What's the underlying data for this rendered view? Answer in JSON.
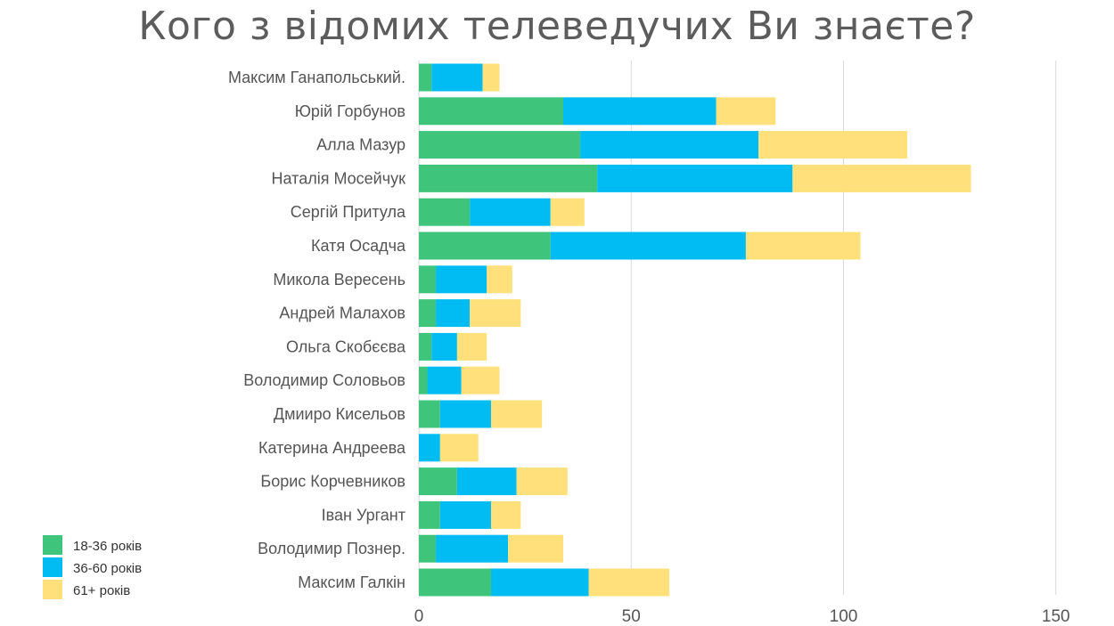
{
  "chart_data": {
    "type": "bar",
    "orientation": "horizontal",
    "stacked": true,
    "title": "Кого з відомих телеведучих Ви знаєте?",
    "categories": [
      "Максим Ганапольський.",
      "Юрій Горбунов",
      "Алла Мазур",
      "Наталія Мосейчук",
      "Сергій Притула",
      "Катя Осадча",
      "Микола Вересень",
      "Андрей Малахов",
      "Ольга Скобєєва",
      "Володимир Соловьов",
      "Дмииро Кисельов",
      "Катерина Андреева",
      "Борис Корчевников",
      "Іван Ургант",
      "Володимир Познер.",
      "Максим Галкін"
    ],
    "series": [
      {
        "name": "18-36 років",
        "color": "#3fc47c",
        "values": [
          3,
          34,
          38,
          42,
          12,
          31,
          4,
          4,
          3,
          2,
          5,
          0,
          9,
          5,
          4,
          17
        ]
      },
      {
        "name": "36-60 років",
        "color": "#00bcf2",
        "values": [
          12,
          36,
          42,
          46,
          19,
          46,
          12,
          8,
          6,
          8,
          12,
          5,
          14,
          12,
          17,
          23
        ]
      },
      {
        "name": "61+ років",
        "color": "#ffe07a",
        "values": [
          4,
          14,
          35,
          42,
          8,
          27,
          6,
          12,
          7,
          9,
          12,
          9,
          12,
          7,
          13,
          19
        ]
      }
    ],
    "xlim": [
      0,
      150
    ],
    "xticks": [
      "0",
      "50",
      "100",
      "150"
    ],
    "xlabel": "",
    "ylabel": "",
    "grid": "vertical",
    "legend_position": "bottom-left"
  }
}
